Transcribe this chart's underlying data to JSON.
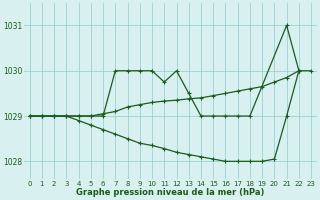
{
  "line1_pts": [
    0,
    1,
    2,
    3,
    4,
    5,
    6,
    7,
    8,
    9,
    10,
    11,
    12,
    13,
    14,
    15,
    16,
    17,
    18,
    21,
    22
  ],
  "line1_vals": [
    1029.0,
    1029.0,
    1029.0,
    1029.0,
    1029.0,
    1029.0,
    1029.0,
    1030.0,
    1030.0,
    1030.0,
    1030.0,
    1029.75,
    1030.0,
    1029.5,
    1029.0,
    1029.0,
    1029.0,
    1029.0,
    1029.0,
    1031.0,
    1030.0
  ],
  "line2_pts": [
    0,
    1,
    2,
    3,
    4,
    5,
    6,
    7,
    8,
    9,
    10,
    11,
    12,
    13,
    14,
    15,
    16,
    17,
    18,
    19,
    20,
    21,
    22,
    23
  ],
  "line2_vals": [
    1029.0,
    1029.0,
    1029.0,
    1029.0,
    1029.0,
    1029.0,
    1029.05,
    1029.1,
    1029.2,
    1029.25,
    1029.3,
    1029.33,
    1029.35,
    1029.38,
    1029.4,
    1029.45,
    1029.5,
    1029.55,
    1029.6,
    1029.65,
    1029.75,
    1029.85,
    1030.0,
    1030.0
  ],
  "line3_pts": [
    0,
    1,
    2,
    3,
    4,
    5,
    6,
    7,
    8,
    9,
    10,
    11,
    12,
    13,
    14,
    15,
    16,
    17,
    18,
    19,
    20,
    21,
    22
  ],
  "line3_vals": [
    1029.0,
    1029.0,
    1029.0,
    1029.0,
    1028.9,
    1028.8,
    1028.7,
    1028.6,
    1028.5,
    1028.4,
    1028.35,
    1028.28,
    1028.2,
    1028.15,
    1028.1,
    1028.05,
    1028.0,
    1028.0,
    1028.0,
    1028.0,
    1028.05,
    1029.0,
    1030.0
  ],
  "line_color": "#1a5c1a",
  "marker": "+",
  "markersize": 3.5,
  "markeredgewidth": 0.8,
  "linewidth": 0.9,
  "bg_color": "#d8f0f0",
  "grid_color": "#8ecece",
  "xlabel": "Graphe pression niveau de la mer (hPa)",
  "ylim": [
    1027.6,
    1031.5
  ],
  "xlim": [
    -0.5,
    23.5
  ],
  "yticks": [
    1028,
    1029,
    1030,
    1031
  ],
  "xticks": [
    0,
    1,
    2,
    3,
    4,
    5,
    6,
    7,
    8,
    9,
    10,
    11,
    12,
    13,
    14,
    15,
    16,
    17,
    18,
    19,
    20,
    21,
    22,
    23
  ],
  "tick_fontsize": 5.0,
  "xlabel_fontsize": 6.0
}
